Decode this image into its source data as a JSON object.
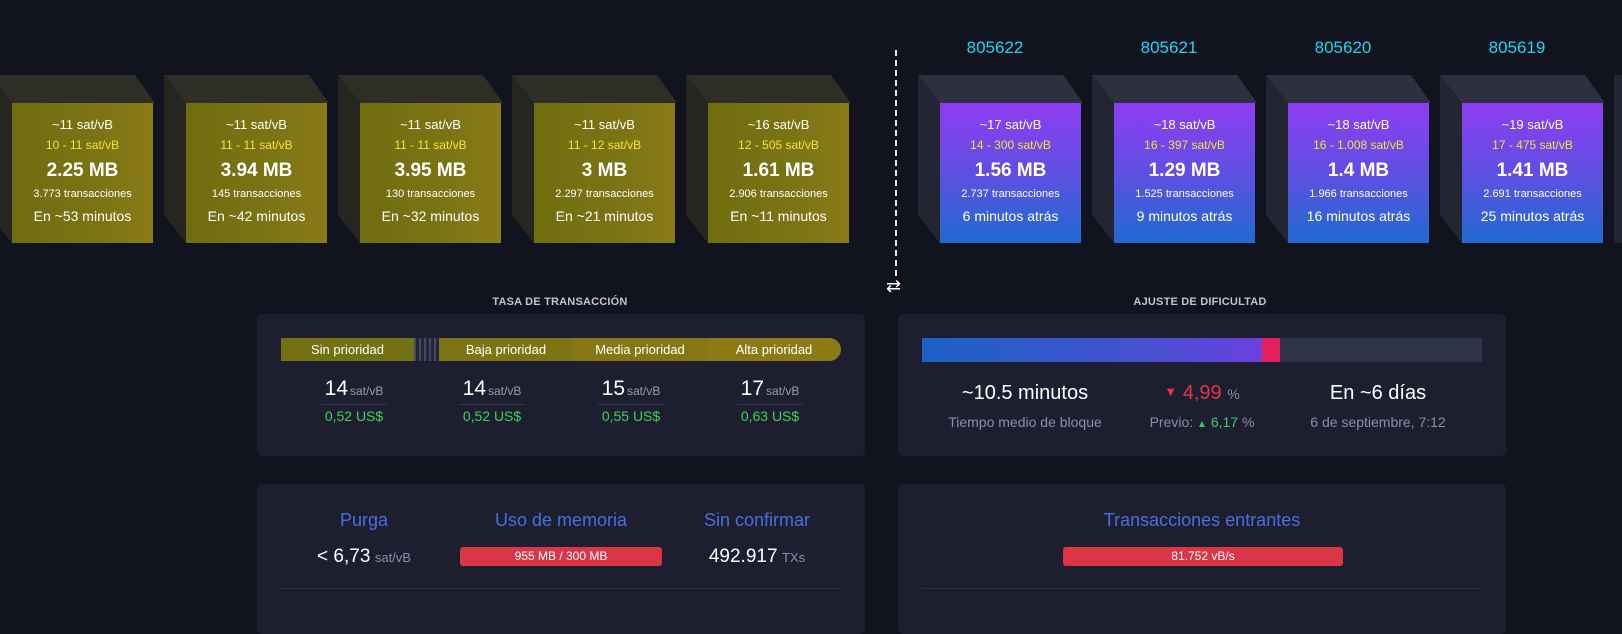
{
  "pending_blocks": [
    {
      "fee": "~11 sat/vB",
      "range": "10 - 11 sat/vB",
      "size": "2.25 MB",
      "tx": "3.773 transacciones",
      "eta": "En ~53 minutos"
    },
    {
      "fee": "~11 sat/vB",
      "range": "11 - 11 sat/vB",
      "size": "3.94 MB",
      "tx": "145 transacciones",
      "eta": "En ~42 minutos"
    },
    {
      "fee": "~11 sat/vB",
      "range": "11 - 11 sat/vB",
      "size": "3.95 MB",
      "tx": "130 transacciones",
      "eta": "En ~32 minutos"
    },
    {
      "fee": "~11 sat/vB",
      "range": "11 - 12 sat/vB",
      "size": "3 MB",
      "tx": "2.297 transacciones",
      "eta": "En ~21 minutos"
    },
    {
      "fee": "~16 sat/vB",
      "range": "12 - 505 sat/vB",
      "size": "1.61 MB",
      "tx": "2.906 transacciones",
      "eta": "En ~11 minutos"
    }
  ],
  "mined_blocks": [
    {
      "height": "805622",
      "fee": "~17 sat/vB",
      "range": "14 - 300 sat/vB",
      "size": "1.56 MB",
      "tx": "2.737 transacciones",
      "ago": "6 minutos atrás"
    },
    {
      "height": "805621",
      "fee": "~18 sat/vB",
      "range": "16 - 397 sat/vB",
      "size": "1.29 MB",
      "tx": "1.525 transacciones",
      "ago": "9 minutos atrás"
    },
    {
      "height": "805620",
      "fee": "~18 sat/vB",
      "range": "16 - 1.008 sat/vB",
      "size": "1.4 MB",
      "tx": "1.966 transacciones",
      "ago": "16 minutos atrás"
    },
    {
      "height": "805619",
      "fee": "~19 sat/vB",
      "range": "17 - 475 sat/vB",
      "size": "1.41 MB",
      "tx": "2.691 transacciones",
      "ago": "25 minutos atrás"
    }
  ],
  "swap_icon": "⇄",
  "fees": {
    "title": "TASA DE TRANSACCIÓN",
    "labels": [
      "Sin prioridad",
      "Baja prioridad",
      "Media prioridad",
      "Alta prioridad"
    ],
    "unit": "sat/vB",
    "values": [
      {
        "sat": "14",
        "usd": "0,52 US$"
      },
      {
        "sat": "14",
        "usd": "0,52 US$"
      },
      {
        "sat": "15",
        "usd": "0,55 US$"
      },
      {
        "sat": "17",
        "usd": "0,63 US$"
      }
    ]
  },
  "difficulty": {
    "title": "AJUSTE DE DIFICULTAD",
    "progress": 0.64,
    "avg_time": "~10.5 minutos",
    "avg_time_label": "Tiempo medio de bloque",
    "change_value": "4,99",
    "change_unit": "%",
    "previous_label": "Previo:",
    "previous_value": "6,17",
    "previous_unit": "%",
    "eta": "En ~6 días",
    "eta_date": "6 de septiembre, 7:12",
    "colors": {
      "down": "#e53448",
      "up": "#3bcc6a"
    }
  },
  "mempool": {
    "purge_title": "Purga",
    "purge_value": "< 6,73",
    "purge_unit": "sat/vB",
    "memory_title": "Uso de memoria",
    "memory_value": "955 MB / 300 MB",
    "unconfirmed_title": "Sin confirmar",
    "unconfirmed_value": "492.917",
    "unconfirmed_unit": "TXs"
  },
  "incoming": {
    "title": "Transacciones entrantes",
    "value": "81.752 vB/s"
  }
}
